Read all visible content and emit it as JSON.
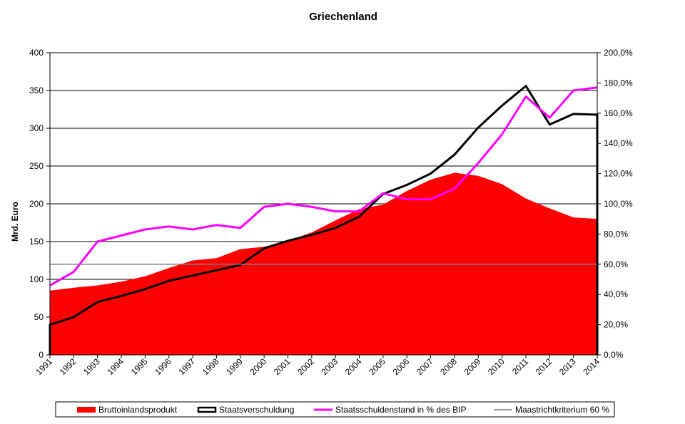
{
  "chart_data": {
    "type": "area",
    "title": "Griechenland",
    "xlabel": "",
    "ylabel": "Mrd. Euro",
    "ylim": [
      0,
      400
    ],
    "y_ticks": [
      "0",
      "50",
      "100",
      "150",
      "200",
      "250",
      "300",
      "350",
      "400"
    ],
    "y2lim": [
      0,
      200
    ],
    "y2_ticks": [
      "0,0%",
      "20,0%",
      "40,0%",
      "60,0%",
      "80,0%",
      "100,0%",
      "120,0%",
      "140,0%",
      "160,0%",
      "180,0%",
      "200,0%"
    ],
    "categories": [
      "1991",
      "1992",
      "1993",
      "1994",
      "1995",
      "1996",
      "1997",
      "1998",
      "1999",
      "2000",
      "2001",
      "2002",
      "2003",
      "2004",
      "2005",
      "2006",
      "2007",
      "2008",
      "2009",
      "2010",
      "2011",
      "2012",
      "2013",
      "2014"
    ],
    "series": [
      {
        "name": "Bruttoinlandsprodukt",
        "type": "area",
        "axis": "left",
        "color": "#ff0000",
        "values": [
          85,
          89,
          92,
          97,
          104,
          115,
          125,
          128,
          140,
          143,
          151,
          162,
          178,
          193,
          199,
          217,
          232,
          241,
          237,
          226,
          207,
          194,
          182,
          180
        ]
      },
      {
        "name": "Staatsverschuldung",
        "type": "line",
        "axis": "left",
        "color": "#000000",
        "values": [
          40,
          50,
          70,
          78,
          87,
          98,
          105,
          112,
          119,
          141,
          151,
          159,
          168,
          183,
          213,
          225,
          240,
          265,
          301,
          330,
          356,
          305,
          319,
          318
        ]
      },
      {
        "name": "Staatsschuldenstand in % des BIP",
        "type": "line",
        "axis": "right",
        "color": "#ff00ff",
        "values": [
          46,
          55,
          75,
          79,
          83,
          85,
          83,
          86,
          84,
          98,
          100,
          98,
          95,
          95,
          107,
          103,
          103,
          110,
          127,
          146,
          171,
          157,
          175,
          177
        ]
      },
      {
        "name": "Maastrichtkriterium 60 %",
        "type": "line",
        "axis": "right",
        "color": "#808080",
        "values": [
          60,
          60,
          60,
          60,
          60,
          60,
          60,
          60,
          60,
          60,
          60,
          60,
          60,
          60,
          60,
          60,
          60,
          60,
          60,
          60,
          60,
          60,
          60,
          60
        ]
      }
    ],
    "grid": true,
    "legend_position": "bottom"
  }
}
